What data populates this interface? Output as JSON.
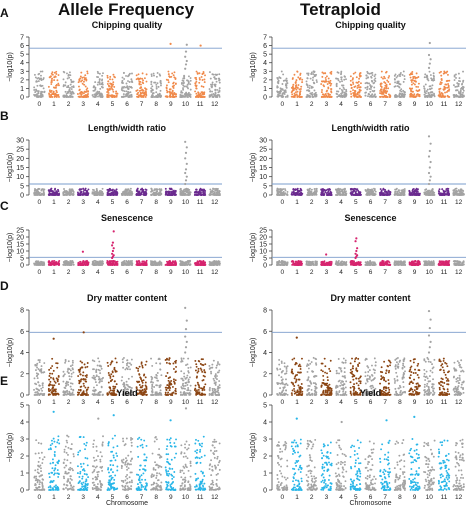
{
  "column_titles": [
    "Allele Frequency",
    "Tetraploid"
  ],
  "xlabel": "Chromosome",
  "ylabel": "−log10(p)",
  "colors": {
    "gray": "#a3a3a3",
    "orange": "#f08a4b",
    "purple": "#6b2b8f",
    "magenta": "#d6246e",
    "brown": "#8b4513",
    "cyan": "#29b6e8",
    "threshold_line": "#7a9ccc"
  },
  "chromosome_labels": [
    "0",
    "1",
    "2",
    "3",
    "4",
    "5",
    "6",
    "7",
    "8",
    "9",
    "10",
    "11",
    "12"
  ],
  "chart_data": [
    {
      "type": "scatter",
      "panel": "A",
      "title": "Chipping quality",
      "column": "Allele Frequency",
      "accent": "orange",
      "highlight_chromosomes": [
        "1",
        "3",
        "5",
        "7",
        "9",
        "11"
      ],
      "ylim": [
        0,
        7
      ],
      "yticks": [
        0,
        1,
        2,
        3,
        4,
        5,
        6,
        7
      ],
      "threshold": 5.7,
      "background_max": 3.0,
      "series": [
        {
          "name": "peak",
          "x": [
            "10",
            "10",
            "10",
            "10",
            "10",
            "10"
          ],
          "y": [
            3.3,
            3.8,
            4.2,
            4.7,
            5.3,
            6.1
          ]
        },
        {
          "name": "hits",
          "x": [
            "9",
            "11"
          ],
          "y": [
            6.2,
            6.0
          ]
        }
      ]
    },
    {
      "type": "scatter",
      "panel": "A",
      "title": "Chipping quality",
      "column": "Tetraploid",
      "accent": "orange",
      "highlight_chromosomes": [
        "1",
        "3",
        "5",
        "7",
        "9",
        "11"
      ],
      "ylim": [
        0,
        7
      ],
      "yticks": [
        0,
        1,
        2,
        3,
        4,
        5,
        6,
        7
      ],
      "threshold": 5.7,
      "background_max": 3.0,
      "series": [
        {
          "name": "peak",
          "x": [
            "10",
            "10",
            "10",
            "10",
            "10"
          ],
          "y": [
            3.4,
            3.9,
            4.4,
            4.9,
            6.3
          ]
        }
      ]
    },
    {
      "type": "scatter",
      "panel": "B",
      "title": "Length/width ratio",
      "column": "Allele Frequency",
      "accent": "purple",
      "highlight_chromosomes": [
        "1",
        "3",
        "5",
        "7",
        "9",
        "11"
      ],
      "ylim": [
        0,
        30
      ],
      "yticks": [
        0,
        5,
        10,
        15,
        20,
        25,
        30
      ],
      "threshold": 6.0,
      "background_max": 3.5,
      "series": [
        {
          "name": "peak",
          "x": [
            "10",
            "10",
            "10",
            "10",
            "10",
            "10",
            "10",
            "10",
            "10",
            "10"
          ],
          "y": [
            6,
            8,
            10,
            12,
            14,
            17,
            20,
            23,
            26,
            29
          ]
        }
      ]
    },
    {
      "type": "scatter",
      "panel": "B",
      "title": "Length/width ratio",
      "column": "Tetraploid",
      "accent": "purple",
      "highlight_chromosomes": [
        "1",
        "3",
        "5",
        "7",
        "9",
        "11"
      ],
      "ylim": [
        0,
        30
      ],
      "yticks": [
        0,
        5,
        10,
        15,
        20,
        25,
        30
      ],
      "threshold": 6.0,
      "background_max": 3.5,
      "series": [
        {
          "name": "peak",
          "x": [
            "10",
            "10",
            "10",
            "10",
            "10",
            "10",
            "10",
            "10",
            "10",
            "10"
          ],
          "y": [
            6,
            8,
            10,
            12,
            15,
            18,
            21,
            24,
            28,
            32
          ]
        }
      ]
    },
    {
      "type": "scatter",
      "panel": "C",
      "title": "Senescence",
      "column": "Allele Frequency",
      "accent": "magenta",
      "highlight_chromosomes": [
        "1",
        "3",
        "5",
        "7",
        "9",
        "11"
      ],
      "ylim": [
        0,
        25
      ],
      "yticks": [
        0,
        5,
        10,
        15,
        20,
        25
      ],
      "threshold": 5.5,
      "background_max": 3.0,
      "series": [
        {
          "name": "peak",
          "x": [
            "5",
            "5",
            "5",
            "5",
            "5",
            "5",
            "5",
            "5",
            "5"
          ],
          "y": [
            5,
            6,
            7,
            8,
            10,
            12,
            14,
            16,
            24
          ]
        },
        {
          "name": "hits",
          "x": [
            "3"
          ],
          "y": [
            9.5
          ]
        }
      ]
    },
    {
      "type": "scatter",
      "panel": "C",
      "title": "Senescence",
      "column": "Tetraploid",
      "accent": "magenta",
      "highlight_chromosomes": [
        "1",
        "3",
        "5",
        "7",
        "9",
        "11"
      ],
      "ylim": [
        0,
        25
      ],
      "yticks": [
        0,
        5,
        10,
        15,
        20,
        25
      ],
      "threshold": 5.5,
      "background_max": 3.0,
      "series": [
        {
          "name": "peak",
          "x": [
            "5",
            "5",
            "5",
            "5",
            "5",
            "5",
            "5",
            "5"
          ],
          "y": [
            5,
            6,
            7,
            8,
            10,
            12,
            17,
            19
          ]
        },
        {
          "name": "hits",
          "x": [
            "3"
          ],
          "y": [
            7.5
          ]
        }
      ]
    },
    {
      "type": "scatter",
      "panel": "D",
      "title": "Dry matter content",
      "column": "Allele Frequency",
      "accent": "brown",
      "highlight_chromosomes": [
        "1",
        "3",
        "5",
        "7",
        "9",
        "11"
      ],
      "ylim": [
        0,
        8
      ],
      "yticks": [
        0,
        2,
        4,
        6,
        8
      ],
      "threshold": 5.9,
      "background_max": 3.5,
      "series": [
        {
          "name": "peak",
          "x": [
            "10",
            "10",
            "10",
            "10",
            "10",
            "10",
            "10"
          ],
          "y": [
            4.0,
            4.5,
            5.0,
            5.5,
            6.2,
            7.0,
            8.2
          ]
        },
        {
          "name": "hits",
          "x": [
            "1",
            "3"
          ],
          "y": [
            5.3,
            5.9
          ]
        }
      ]
    },
    {
      "type": "scatter",
      "panel": "D",
      "title": "Dry matter content",
      "column": "Tetraploid",
      "accent": "brown",
      "highlight_chromosomes": [
        "1",
        "3",
        "5",
        "7",
        "9",
        "11"
      ],
      "ylim": [
        0,
        8
      ],
      "yticks": [
        0,
        2,
        4,
        6,
        8
      ],
      "threshold": 5.9,
      "background_max": 3.5,
      "series": [
        {
          "name": "peak",
          "x": [
            "10",
            "10",
            "10",
            "10",
            "10",
            "10",
            "10"
          ],
          "y": [
            4.0,
            4.5,
            5.0,
            5.6,
            6.3,
            7.1,
            7.9
          ]
        },
        {
          "name": "hits",
          "x": [
            "1"
          ],
          "y": [
            5.4
          ]
        }
      ]
    },
    {
      "type": "scatter",
      "panel": "E",
      "title": "Yield",
      "column": "Allele Frequency",
      "accent": "cyan",
      "highlight_chromosomes": [
        "1",
        "3",
        "5",
        "7",
        "9",
        "11"
      ],
      "ylim": [
        0,
        5
      ],
      "yticks": [
        0,
        1,
        2,
        3,
        4,
        5
      ],
      "threshold": null,
      "background_max": 3.2,
      "series": [
        {
          "name": "hits",
          "x": [
            "1",
            "4",
            "5",
            "9",
            "10"
          ],
          "y": [
            4.6,
            4.2,
            4.4,
            4.1,
            4.8
          ]
        }
      ]
    },
    {
      "type": "scatter",
      "panel": "E",
      "title": "Yield",
      "column": "Tetraploid",
      "accent": "cyan",
      "highlight_chromosomes": [
        "1",
        "3",
        "5",
        "7",
        "9",
        "11"
      ],
      "ylim": [
        0,
        5
      ],
      "yticks": [
        0,
        1,
        2,
        3,
        4,
        5
      ],
      "threshold": null,
      "background_max": 3.0,
      "series": [
        {
          "name": "hits",
          "x": [
            "1",
            "4",
            "7",
            "9"
          ],
          "y": [
            4.2,
            4.0,
            4.1,
            4.3
          ]
        }
      ]
    }
  ]
}
